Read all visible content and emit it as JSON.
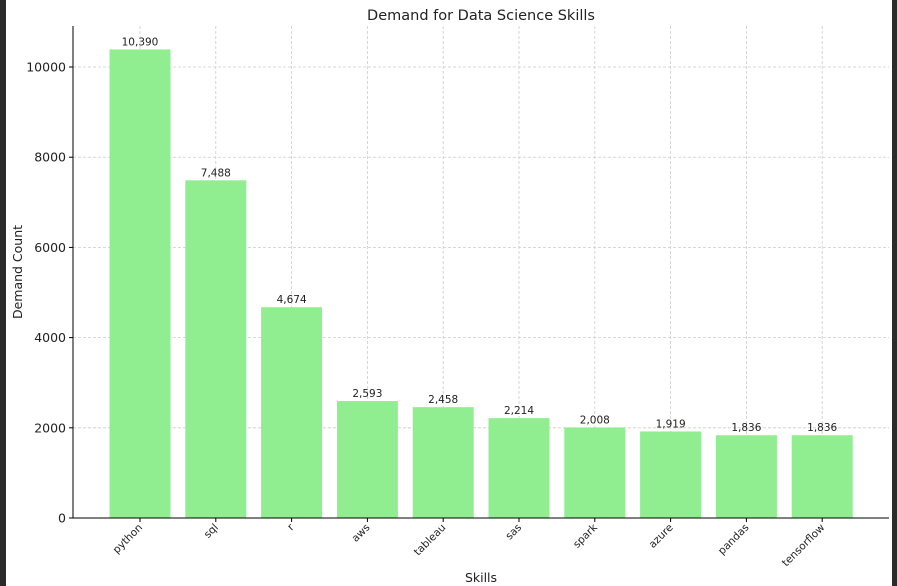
{
  "colors": {
    "bar": "#90ee90",
    "grid": "#cccccc",
    "axis": "#000000",
    "text": "#222222",
    "frame": "#2b2b2b"
  },
  "chart_data": {
    "type": "bar",
    "title": "Demand for Data Science Skills",
    "xlabel": "Skills",
    "ylabel": "Demand Count",
    "categories": [
      "python",
      "sql",
      "r",
      "aws",
      "tableau",
      "sas",
      "spark",
      "azure",
      "pandas",
      "tensorflow"
    ],
    "values": [
      10390,
      7488,
      4674,
      2593,
      2458,
      2214,
      2008,
      1919,
      1836,
      1836
    ],
    "data_labels": [
      "10,390",
      "7,488",
      "4,674",
      "2,593",
      "2,458",
      "2,214",
      "2,008",
      "1,919",
      "1,836",
      "1,836"
    ],
    "yticks": [
      0,
      2000,
      4000,
      6000,
      8000,
      10000
    ],
    "ytick_labels": [
      "0",
      "2000",
      "4000",
      "6000",
      "8000",
      "10000"
    ],
    "ylim": [
      0,
      10909.5
    ],
    "grid": true,
    "grid_style": "dashed"
  }
}
